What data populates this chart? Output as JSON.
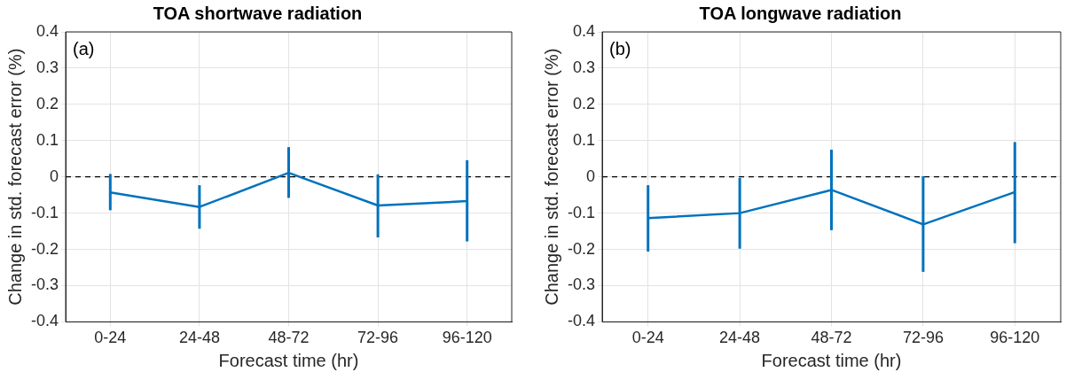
{
  "chart_data": [
    {
      "type": "line",
      "title": "TOA shortwave radiation",
      "xlabel": "Forecast time (hr)",
      "ylabel": "Change in std. forecast error (%)",
      "annotations": [
        "(a)"
      ],
      "categories": [
        "0-24",
        "24-48",
        "48-72",
        "72-96",
        "96-120"
      ],
      "series": [
        {
          "color": "#0072bd",
          "values": [
            -0.043,
            -0.083,
            0.011,
            -0.079,
            -0.067
          ],
          "errors": [
            [
              -0.092,
              0.008
            ],
            [
              -0.143,
              -0.023
            ],
            [
              -0.058,
              0.082
            ],
            [
              -0.167,
              0.007
            ],
            [
              -0.178,
              0.046
            ]
          ]
        }
      ],
      "ylim": [
        -0.4,
        0.4
      ],
      "yticks": [
        -0.4,
        -0.3,
        -0.2,
        -0.1,
        0,
        0.1,
        0.2,
        0.3,
        0.4
      ],
      "grid": true,
      "legend": false,
      "marker": "none",
      "line_style": "solid",
      "ref_lines": [
        {
          "axis": "y",
          "value": 0,
          "color": "#000000",
          "line_style": "dashed"
        }
      ]
    },
    {
      "type": "line",
      "title": "TOA longwave radiation",
      "xlabel": "Forecast time (hr)",
      "ylabel": "Change in std. forecast error (%)",
      "annotations": [
        "(b)"
      ],
      "categories": [
        "0-24",
        "24-48",
        "48-72",
        "72-96",
        "96-120"
      ],
      "series": [
        {
          "color": "#0072bd",
          "values": [
            -0.114,
            -0.1,
            -0.036,
            -0.131,
            -0.042
          ],
          "errors": [
            [
              -0.206,
              -0.023
            ],
            [
              -0.198,
              -0.003
            ],
            [
              -0.147,
              0.075
            ],
            [
              -0.262,
              0.002
            ],
            [
              -0.183,
              0.096
            ]
          ]
        }
      ],
      "ylim": [
        -0.4,
        0.4
      ],
      "yticks": [
        -0.4,
        -0.3,
        -0.2,
        -0.1,
        0,
        0.1,
        0.2,
        0.3,
        0.4
      ],
      "grid": true,
      "legend": false,
      "marker": "none",
      "line_style": "solid",
      "ref_lines": [
        {
          "axis": "y",
          "value": 0,
          "color": "#000000",
          "line_style": "dashed"
        }
      ]
    }
  ]
}
